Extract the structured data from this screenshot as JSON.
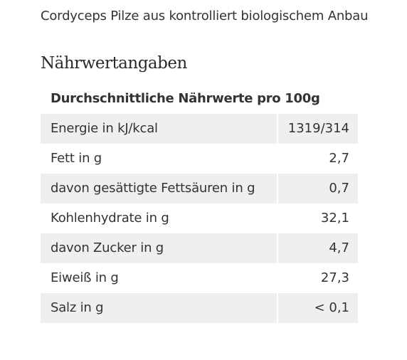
{
  "product": {
    "description": "Cordyceps Pilze aus kontrolliert biologischem Anbau"
  },
  "nutrition": {
    "heading": "Nährwertangaben",
    "caption": "Durchschnittliche Nährwerte pro 100g",
    "rows": [
      {
        "label": "Energie in kJ/kcal",
        "value": "1319/314"
      },
      {
        "label": "Fett in g",
        "value": "2,7"
      },
      {
        "label": "davon gesättigte Fettsäuren in g",
        "value": "0,7"
      },
      {
        "label": "Kohlenhydrate in g",
        "value": "32,1"
      },
      {
        "label": "davon Zucker in g",
        "value": "4,7"
      },
      {
        "label": "Eiweiß in g",
        "value": "27,3"
      },
      {
        "label": "Salz in g",
        "value": "< 0,1"
      }
    ]
  },
  "colors": {
    "text": "#333333",
    "row_shade": "#efefef",
    "background": "#ffffff"
  }
}
